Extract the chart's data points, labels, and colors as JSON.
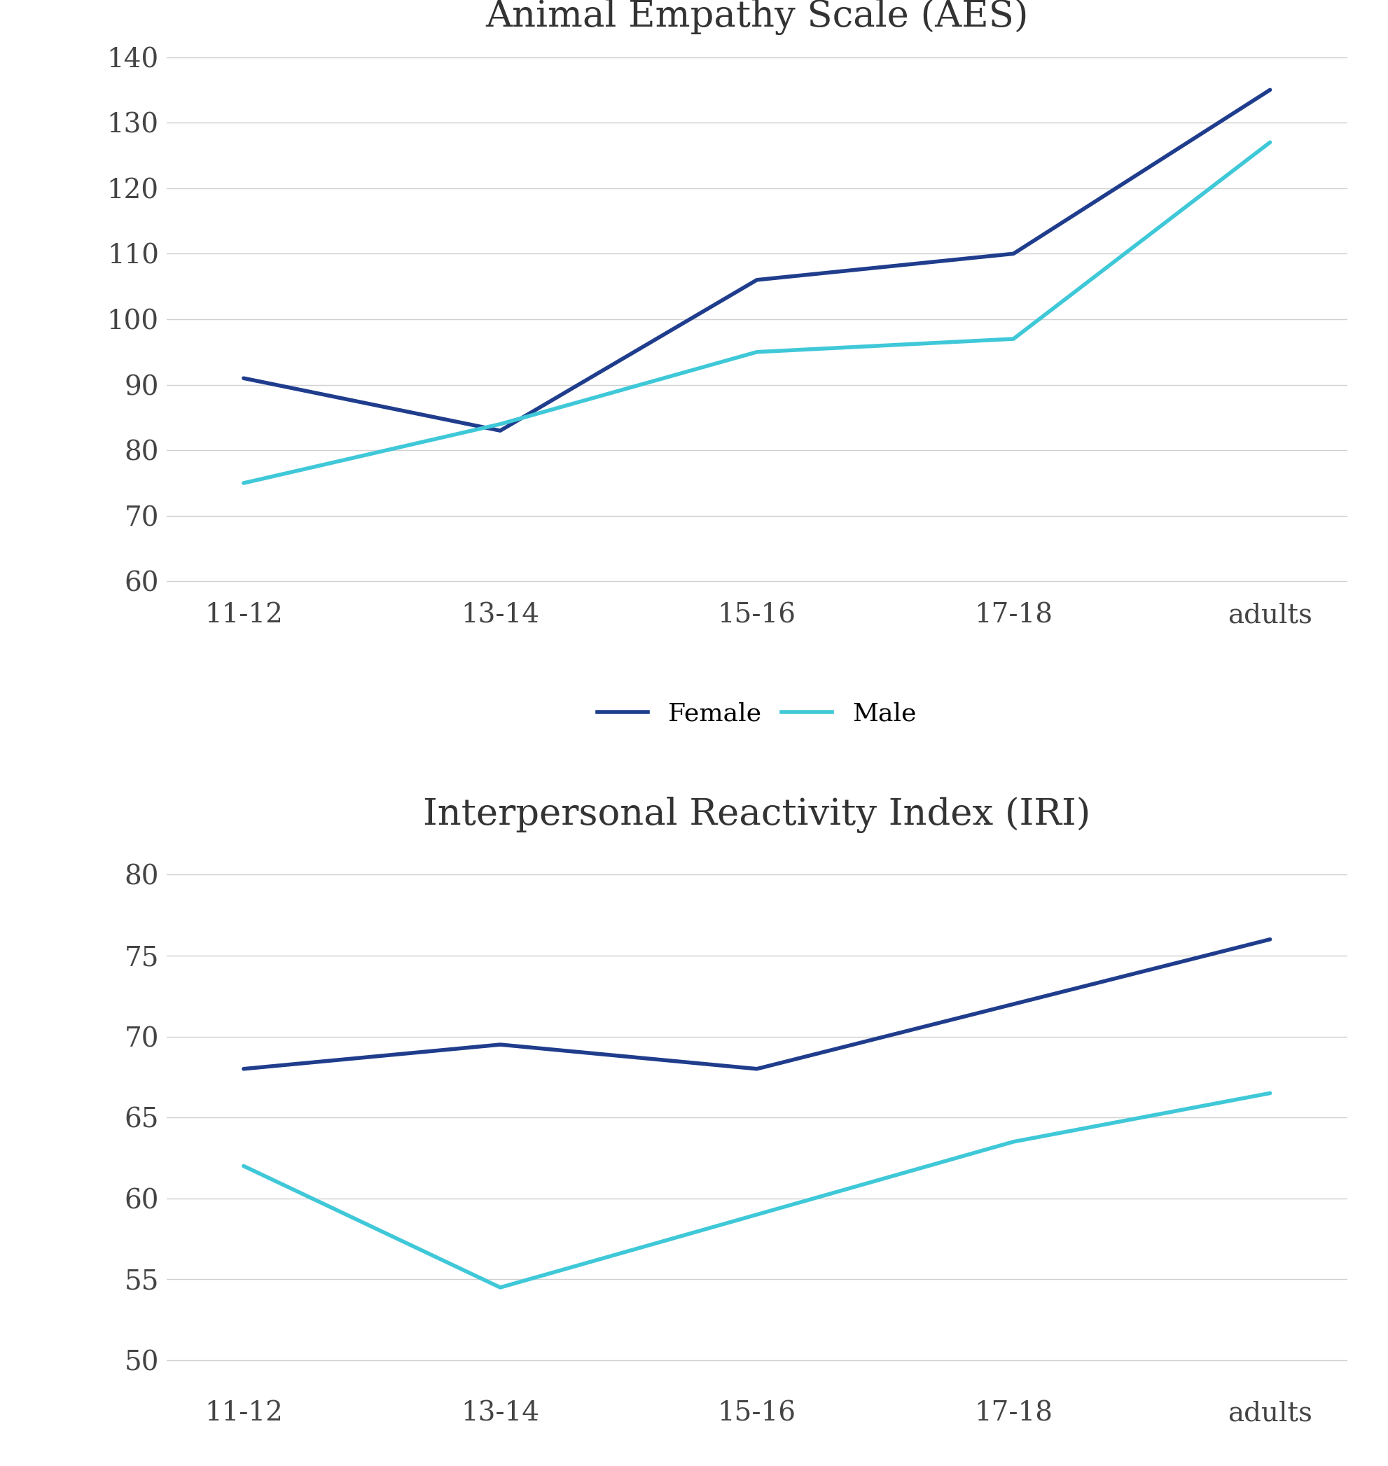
{
  "aes_title": "Animal Empathy Scale (AES)",
  "iri_title": "Interpersonal Reactivity Index (IRI)",
  "categories": [
    "11-12",
    "13-14",
    "15-16",
    "17-18",
    "adults"
  ],
  "aes_female": [
    91,
    83,
    106,
    110,
    135
  ],
  "aes_male": [
    75,
    84,
    95,
    97,
    127
  ],
  "iri_female": [
    68,
    69.5,
    68,
    72,
    76
  ],
  "iri_male": [
    62,
    54.5,
    59,
    63.5,
    66.5
  ],
  "female_color": "#1f3d8c",
  "male_color": "#3fc8d8",
  "aes_ylim": [
    58,
    142
  ],
  "aes_yticks": [
    60,
    70,
    80,
    90,
    100,
    110,
    120,
    130,
    140
  ],
  "iri_ylim": [
    48,
    82
  ],
  "iri_yticks": [
    50,
    55,
    60,
    65,
    70,
    75,
    80
  ],
  "line_width": 4.0,
  "title_fontsize": 38,
  "tick_fontsize": 28,
  "legend_fontsize": 26,
  "background_color": "#ffffff",
  "grid_color": "#d0d0d0"
}
